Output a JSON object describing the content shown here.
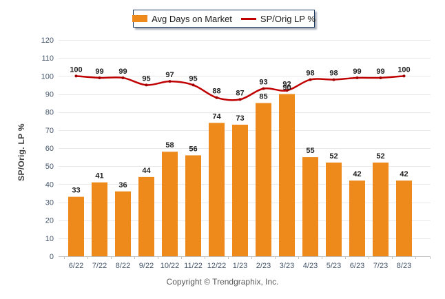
{
  "legend": {
    "border_color": "#17375E",
    "items": [
      {
        "label": "Avg Days on Market",
        "marker": "bar-swatch",
        "color": "#ED8A1B"
      },
      {
        "label": "SP/Orig LP %",
        "marker": "line-swatch",
        "color": "#C00000"
      }
    ]
  },
  "footer": {
    "copyright": "Copyright © Trendgraphix, Inc."
  },
  "colors": {
    "grid": "#E8E8E8",
    "axis": "#BFBFBF",
    "tick_label": "#44546A",
    "data_label": "#1F1F1F",
    "axis_title": "#404040",
    "copyright": "#595959"
  },
  "chart_data": {
    "type": "bar+line",
    "title": "",
    "xlabel": "",
    "ylabel": "SP/Orig. LP %",
    "categories": [
      "6/22",
      "7/22",
      "8/22",
      "9/22",
      "10/22",
      "11/22",
      "12/22",
      "1/23",
      "2/23",
      "3/23",
      "4/23",
      "5/23",
      "6/23",
      "7/23",
      "8/23"
    ],
    "series": [
      {
        "name": "Avg Days on Market",
        "type": "bar",
        "color": "#ED8A1B",
        "values": [
          33,
          41,
          36,
          44,
          58,
          56,
          74,
          73,
          85,
          90,
          55,
          52,
          42,
          52,
          42
        ]
      },
      {
        "name": "SP/Orig LP %",
        "type": "line",
        "color": "#C00000",
        "marker_color": "#A00000",
        "values": [
          100,
          99,
          99,
          95,
          97,
          95,
          88,
          87,
          93,
          92,
          98,
          98,
          99,
          99,
          100
        ]
      }
    ],
    "ylim": [
      0,
      120
    ],
    "ytick_step": 10,
    "grid": true,
    "data_labels": true,
    "legend_position": "top-center"
  }
}
